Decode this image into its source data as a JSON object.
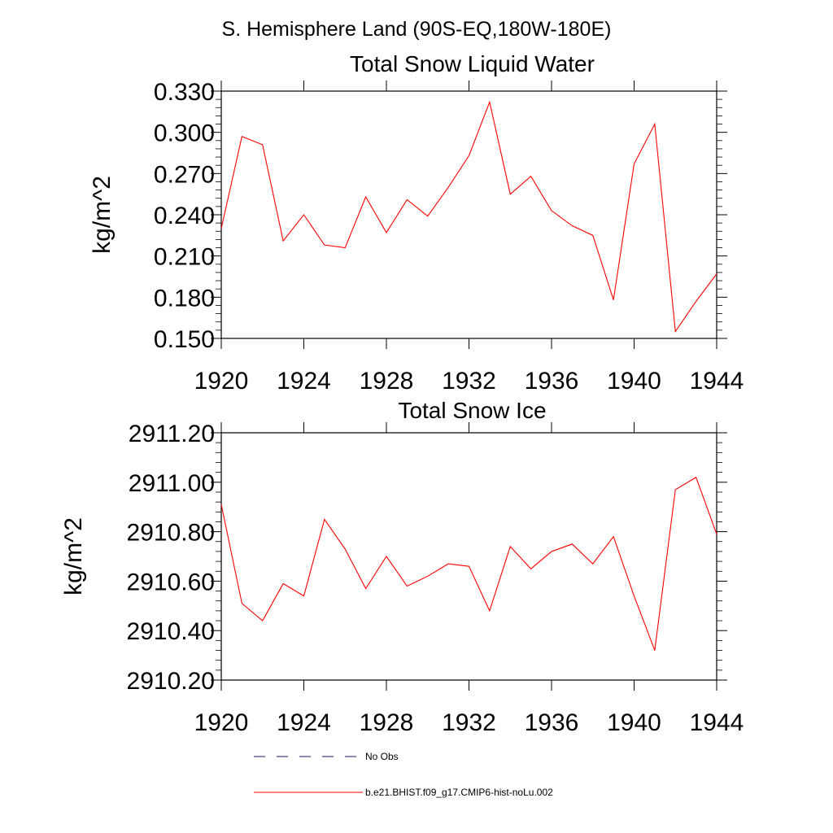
{
  "figure_title": "S. Hemisphere Land (90S-EQ,180W-180E)",
  "chart_data": [
    {
      "type": "line",
      "title": "Total Snow Liquid Water",
      "ylabel": "kg/m^2",
      "xlabel": "",
      "xlim": [
        1920,
        1944
      ],
      "ylim": [
        0.15,
        0.33
      ],
      "x_ticks": [
        "1920",
        "1924",
        "1928",
        "1932",
        "1936",
        "1940",
        "1944"
      ],
      "y_ticks": [
        "0.150",
        "0.180",
        "0.210",
        "0.240",
        "0.270",
        "0.300",
        "0.330"
      ],
      "x": [
        1920,
        1921,
        1922,
        1923,
        1924,
        1925,
        1926,
        1927,
        1928,
        1929,
        1930,
        1931,
        1932,
        1933,
        1934,
        1935,
        1936,
        1937,
        1938,
        1939,
        1940,
        1941,
        1942,
        1943,
        1944
      ],
      "series": [
        {
          "name": "b.e21.BHIST.f09_g17.CMIP6-hist-noLu.002",
          "color": "#ff0000",
          "values": [
            0.23,
            0.297,
            0.291,
            0.221,
            0.24,
            0.218,
            0.216,
            0.253,
            0.227,
            0.251,
            0.239,
            0.26,
            0.283,
            0.322,
            0.255,
            0.268,
            0.243,
            0.232,
            0.225,
            0.178,
            0.277,
            0.306,
            0.155,
            0.177,
            0.197
          ]
        }
      ]
    },
    {
      "type": "line",
      "title": "Total Snow Ice",
      "ylabel": "kg/m^2",
      "xlabel": "",
      "xlim": [
        1920,
        1944
      ],
      "ylim": [
        2910.2,
        2911.2
      ],
      "x_ticks": [
        "1920",
        "1924",
        "1928",
        "1932",
        "1936",
        "1940",
        "1944"
      ],
      "y_ticks": [
        "2910.20",
        "2910.40",
        "2910.60",
        "2910.80",
        "2911.00",
        "2911.20"
      ],
      "x": [
        1920,
        1921,
        1922,
        1923,
        1924,
        1925,
        1926,
        1927,
        1928,
        1929,
        1930,
        1931,
        1932,
        1933,
        1934,
        1935,
        1936,
        1937,
        1938,
        1939,
        1940,
        1941,
        1942,
        1943,
        1944
      ],
      "series": [
        {
          "name": "b.e21.BHIST.f09_g17.CMIP6-hist-noLu.002",
          "color": "#ff0000",
          "values": [
            2910.91,
            2910.51,
            2910.44,
            2910.59,
            2910.54,
            2910.85,
            2910.73,
            2910.57,
            2910.7,
            2910.58,
            2910.62,
            2910.67,
            2910.66,
            2910.48,
            2910.74,
            2910.65,
            2910.72,
            2910.75,
            2910.67,
            2910.78,
            2910.54,
            2910.32,
            2910.97,
            2911.02,
            2910.79
          ]
        }
      ]
    }
  ],
  "legend": [
    {
      "label": "No Obs",
      "style": "dashed",
      "color": "#1a1a66"
    },
    {
      "label": "b.e21.BHIST.f09_g17.CMIP6-hist-noLu.002",
      "style": "solid",
      "color": "#ff0000"
    }
  ]
}
